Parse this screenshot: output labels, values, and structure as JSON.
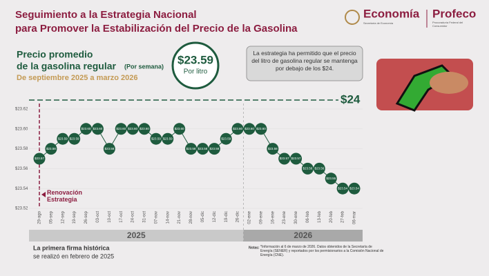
{
  "header": {
    "title_line1": "Seguimiento a la Estrategia Nacional",
    "title_line2": "para Promover la Estabilización del Precio de la Gasolina",
    "logo1": "Economía",
    "logo1_sub": "Secretaría de Economía",
    "logo2": "Profeco",
    "logo2_sub": "Procuraduría Federal del Consumidor"
  },
  "chart_data": {
    "type": "line",
    "title_line1": "Precio promedio",
    "title_line2": "de la gasolina regular",
    "title_note": "(Por semana)",
    "subtitle": "De septiembre 2025 a marzo 2026",
    "average_label": "$23.59",
    "average_unit": "Por litro",
    "callout": "La estrategia ha permitido que el precio del litro de gasolina regular se mantenga por debajo de los $24.",
    "reference_label": "$24",
    "annotation": "Renovación Estrategia",
    "categories": [
      "29-ago",
      "05-sep",
      "12-sep",
      "19-sep",
      "26-sep",
      "03-oct",
      "10-oct",
      "17-oct",
      "24-oct",
      "31-oct",
      "07-nov",
      "14-nov",
      "21-nov",
      "28-nov",
      "05-dic",
      "12-dic",
      "19-dic",
      "26-dic",
      "02-ene",
      "09-ene",
      "16-ene",
      "23-ene",
      "30-ene",
      "06-feb",
      "13-feb",
      "20-feb",
      "27-feb",
      "06-mar"
    ],
    "values": [
      23.57,
      23.58,
      23.59,
      23.59,
      23.6,
      23.6,
      23.58,
      23.6,
      23.6,
      23.6,
      23.59,
      23.59,
      23.6,
      23.58,
      23.58,
      23.58,
      23.59,
      23.6,
      23.6,
      23.6,
      23.58,
      23.57,
      23.57,
      23.56,
      23.56,
      23.55,
      23.54,
      23.54
    ],
    "value_labels": [
      "$23.57",
      "$23.58",
      "$23.59",
      "$23.59",
      "$23.60",
      "$23.60",
      "$23.58",
      "$23.60",
      "$23.60",
      "$23.60",
      "$23.59",
      "$23.59",
      "$23.60",
      "$23.58",
      "$23.58",
      "$23.58",
      "$23.59",
      "$23.60",
      "$23.60",
      "$23.60",
      "$23.58",
      "$23.57",
      "$23.57",
      "$23.56",
      "$23.56",
      "$23.55",
      "$23.54",
      "$23.54"
    ],
    "color": "#1e5b3e",
    "grid": true,
    "ylim": [
      23.52,
      23.62
    ],
    "yticks": [
      {
        "value": 23.52,
        "label": "$23.52"
      },
      {
        "value": 23.54,
        "label": "$23.54"
      },
      {
        "value": 23.56,
        "label": "$23.56"
      },
      {
        "value": 23.58,
        "label": "$23.58"
      },
      {
        "value": 23.6,
        "label": "$23.60"
      },
      {
        "value": 23.62,
        "label": "$23.62"
      }
    ],
    "year_labels": [
      "2025",
      "2026"
    ]
  },
  "footer": {
    "line1": "La primera firma histórica",
    "line2": "se realizó en febrero de 2025",
    "notes_title": "Notas:",
    "notes": "*Información al 6 de marzo de 2026. Datos obtenidos de la Secretaría de Energía (SENER) y reportados por los permisionarios a la Comisión Nacional de Energía (CNE)."
  }
}
